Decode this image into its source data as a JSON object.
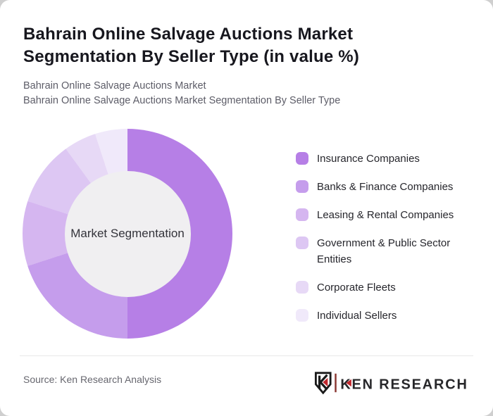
{
  "header": {
    "title": "Bahrain Online Salvage Auctions Market Segmentation By Seller Type (in value %)",
    "subtitle_line1": "Bahrain Online Salvage Auctions Market",
    "subtitle_line2": "Bahrain Online Salvage Auctions Market Segmentation By Seller Type"
  },
  "chart_data": {
    "type": "pie",
    "variant": "donut",
    "center_label": "Market Segmentation",
    "categories": [
      "Insurance Companies",
      "Banks & Finance Companies",
      "Leasing & Rental Companies",
      "Government & Public Sector Entities",
      "Corporate Fleets",
      "Individual Sellers"
    ],
    "values": [
      50,
      20,
      10,
      10,
      5,
      5
    ],
    "unit": "value %",
    "colors": [
      "#b67fe6",
      "#c59dec",
      "#d5b6f0",
      "#ddc7f3",
      "#e7d9f6",
      "#f0e9fa"
    ],
    "inner_circle_color": "#f0eff1",
    "start_angle_deg": 0,
    "direction": "clockwise",
    "legend_position": "right",
    "inner_radius_ratio": 0.6
  },
  "footer": {
    "source": "Source: Ken Research Analysis",
    "logo": {
      "brand": "KEN RESEARCH",
      "emblem_letter": "K",
      "accent_red": "#c1272d",
      "separator_color": "#8a3631",
      "text_color": "#27272a"
    }
  }
}
